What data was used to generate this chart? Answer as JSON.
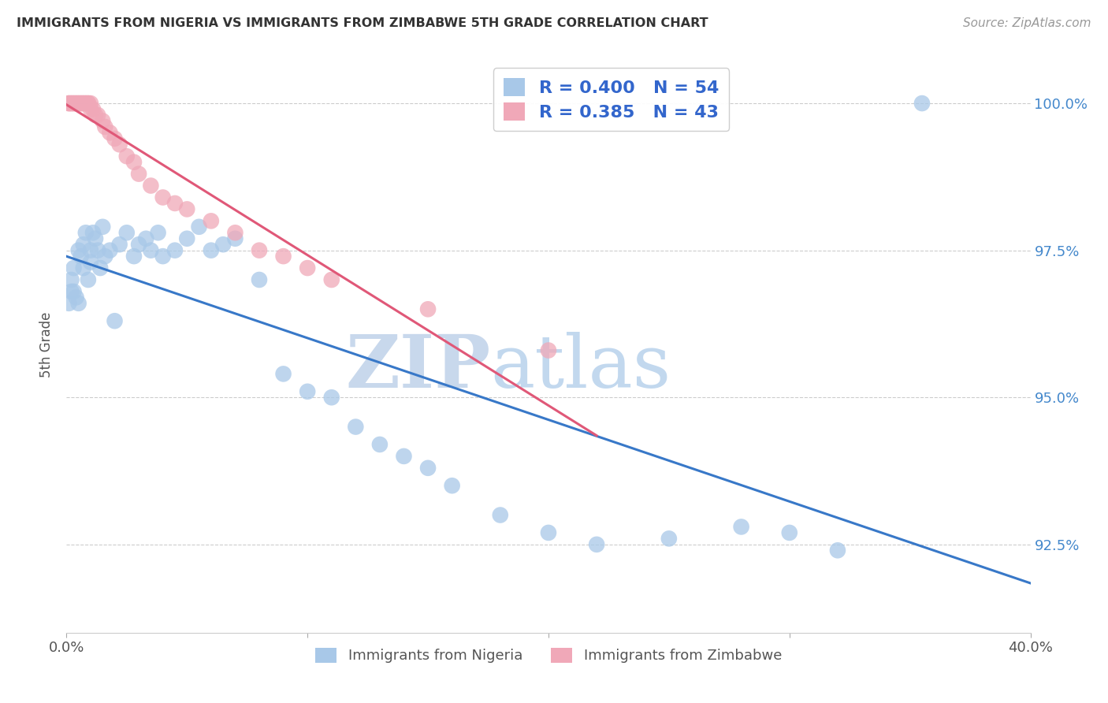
{
  "title": "IMMIGRANTS FROM NIGERIA VS IMMIGRANTS FROM ZIMBABWE 5TH GRADE CORRELATION CHART",
  "source": "Source: ZipAtlas.com",
  "ylabel": "5th Grade",
  "xlim": [
    0.0,
    0.4
  ],
  "ylim": [
    0.91,
    1.008
  ],
  "xtick_labels": [
    "0.0%",
    "",
    "",
    "",
    "40.0%"
  ],
  "xtick_vals": [
    0.0,
    0.1,
    0.2,
    0.3,
    0.4
  ],
  "ytick_labels": [
    "92.5%",
    "95.0%",
    "97.5%",
    "100.0%"
  ],
  "ytick_vals": [
    0.925,
    0.95,
    0.975,
    1.0
  ],
  "legend_labels": [
    "Immigrants from Nigeria",
    "Immigrants from Zimbabwe"
  ],
  "r_nigeria": 0.4,
  "n_nigeria": 54,
  "r_zimbabwe": 0.385,
  "n_zimbabwe": 43,
  "color_nigeria": "#a8c8e8",
  "color_zimbabwe": "#f0a8b8",
  "color_nigeria_line": "#3878c8",
  "color_zimbabwe_line": "#e05878",
  "watermark_zip": "ZIP",
  "watermark_atlas": "atlas",
  "nigeria_x": [
    0.001,
    0.002,
    0.002,
    0.003,
    0.003,
    0.004,
    0.005,
    0.005,
    0.006,
    0.007,
    0.007,
    0.008,
    0.009,
    0.01,
    0.01,
    0.011,
    0.012,
    0.013,
    0.014,
    0.015,
    0.016,
    0.018,
    0.02,
    0.022,
    0.025,
    0.028,
    0.03,
    0.033,
    0.035,
    0.038,
    0.04,
    0.045,
    0.05,
    0.055,
    0.06,
    0.065,
    0.07,
    0.08,
    0.09,
    0.1,
    0.11,
    0.12,
    0.13,
    0.14,
    0.15,
    0.16,
    0.18,
    0.2,
    0.22,
    0.25,
    0.28,
    0.3,
    0.32,
    0.355
  ],
  "nigeria_y": [
    0.966,
    0.968,
    0.97,
    0.972,
    0.968,
    0.967,
    0.966,
    0.975,
    0.974,
    0.972,
    0.976,
    0.978,
    0.97,
    0.975,
    0.973,
    0.978,
    0.977,
    0.975,
    0.972,
    0.979,
    0.974,
    0.975,
    0.963,
    0.976,
    0.978,
    0.974,
    0.976,
    0.977,
    0.975,
    0.978,
    0.974,
    0.975,
    0.977,
    0.979,
    0.975,
    0.976,
    0.977,
    0.97,
    0.954,
    0.951,
    0.95,
    0.945,
    0.942,
    0.94,
    0.938,
    0.935,
    0.93,
    0.927,
    0.925,
    0.926,
    0.928,
    0.927,
    0.924,
    1.0
  ],
  "zimbabwe_x": [
    0.001,
    0.001,
    0.002,
    0.002,
    0.003,
    0.003,
    0.004,
    0.004,
    0.005,
    0.005,
    0.006,
    0.006,
    0.007,
    0.007,
    0.008,
    0.008,
    0.009,
    0.009,
    0.01,
    0.01,
    0.011,
    0.012,
    0.013,
    0.015,
    0.016,
    0.018,
    0.02,
    0.022,
    0.025,
    0.028,
    0.03,
    0.035,
    0.04,
    0.045,
    0.05,
    0.06,
    0.07,
    0.08,
    0.09,
    0.1,
    0.11,
    0.15,
    0.2
  ],
  "zimbabwe_y": [
    1.0,
    1.0,
    1.0,
    1.0,
    1.0,
    1.0,
    1.0,
    1.0,
    1.0,
    1.0,
    1.0,
    1.0,
    1.0,
    1.0,
    1.0,
    1.0,
    1.0,
    1.0,
    1.0,
    0.999,
    0.999,
    0.998,
    0.998,
    0.997,
    0.996,
    0.995,
    0.994,
    0.993,
    0.991,
    0.99,
    0.988,
    0.986,
    0.984,
    0.983,
    0.982,
    0.98,
    0.978,
    0.975,
    0.974,
    0.972,
    0.97,
    0.965,
    0.958
  ]
}
